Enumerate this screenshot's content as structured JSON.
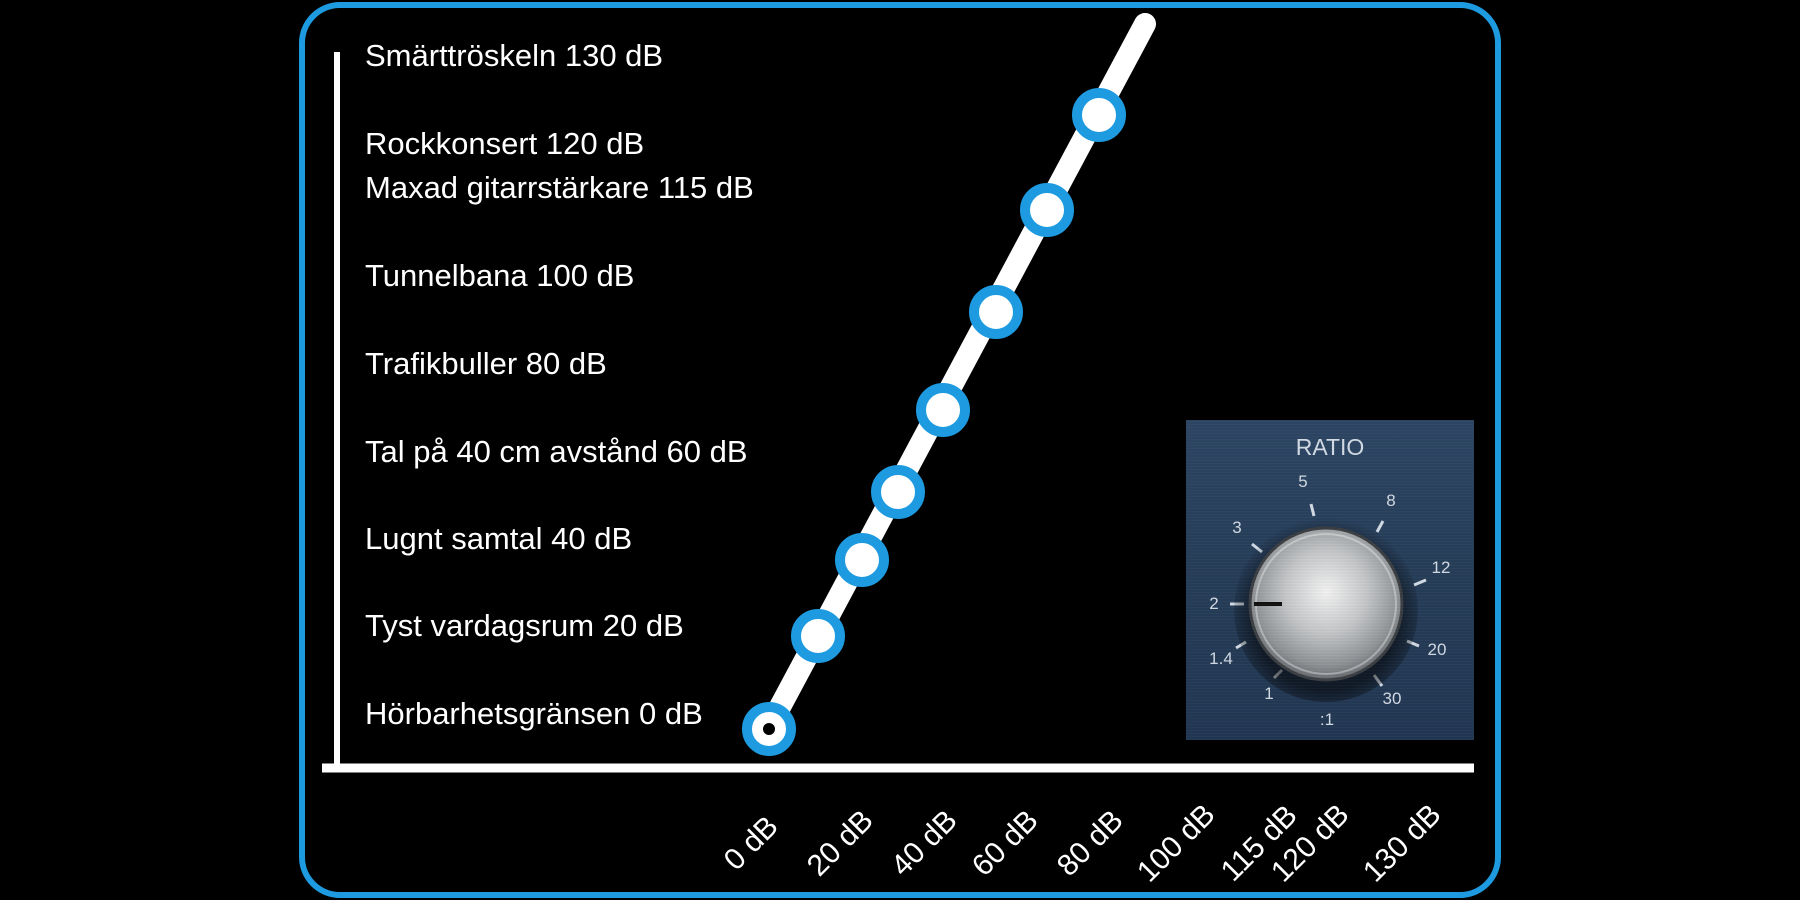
{
  "levels": [
    {
      "label": "Smärttröskeln 130 dB",
      "db": 130
    },
    {
      "label": "Rockkonsert 120 dB",
      "db": 120
    },
    {
      "label": "Maxad gitarrstärkare 115 dB",
      "db": 115
    },
    {
      "label": "Tunnelbana 100 dB",
      "db": 100
    },
    {
      "label": "Trafikbuller 80 dB",
      "db": 80
    },
    {
      "label": "Tal på 40 cm avstånd 60 dB",
      "db": 60
    },
    {
      "label": "Lugnt samtal 40 dB",
      "db": 40
    },
    {
      "label": "Tyst vardagsrum 20 dB",
      "db": 20
    },
    {
      "label": "Hörbarhetsgränsen 0 dB",
      "db": 0
    }
  ],
  "x_ticks": [
    "0 dB",
    "20 dB",
    "40 dB",
    "60 dB",
    "80 dB",
    "100 dB",
    "115 dB",
    "120 dB",
    "130 dB"
  ],
  "ratio_knob": {
    "title": "RATIO",
    "scale": [
      "1",
      "1.4",
      "2",
      "3",
      "5",
      "8",
      "12",
      "20",
      "30"
    ],
    "unit": ":1",
    "current_value": "2"
  },
  "colors": {
    "background": "#000000",
    "frame_border": "#1e9be0",
    "marker_ring": "#1e9be0",
    "line": "#ffffff",
    "text": "#ffffff",
    "ratio_panel": "#2a4260"
  }
}
